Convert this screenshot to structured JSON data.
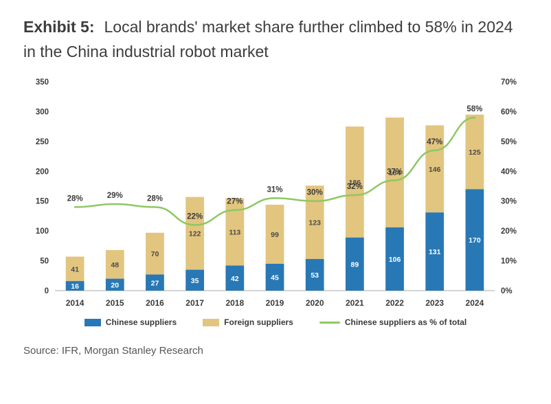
{
  "header": {
    "exhibit_label": "Exhibit 5:",
    "title_rest": "Local brands' market share further climbed to 58% in 2024 in the China industrial robot market"
  },
  "footer": {
    "source": "Source: IFR, Morgan Stanley Research"
  },
  "chart_data": {
    "type": "bar",
    "subtype": "stacked-bar-with-line",
    "categories": [
      "2014",
      "2015",
      "2016",
      "2017",
      "2018",
      "2019",
      "2020",
      "2021",
      "2022",
      "2023",
      "2024"
    ],
    "series": [
      {
        "name": "Chinese suppliers",
        "color": "#2878B5",
        "label_color": "#ffffff",
        "values": [
          16,
          20,
          27,
          35,
          42,
          45,
          53,
          89,
          106,
          131,
          170
        ]
      },
      {
        "name": "Foreign suppliers",
        "color": "#E2C57F",
        "label_color": "#4a4a4a",
        "values": [
          41,
          48,
          70,
          122,
          113,
          99,
          123,
          186,
          184,
          146,
          125
        ]
      }
    ],
    "line_series": {
      "name": "Chinese suppliers as % of total",
      "color": "#8DC863",
      "unit": "%",
      "values": [
        28,
        29,
        28,
        22,
        27,
        31,
        30,
        32,
        37,
        47,
        58
      ]
    },
    "left_axis": {
      "min": 0,
      "max": 350,
      "step": 50,
      "ticks": [
        "0",
        "50",
        "100",
        "150",
        "200",
        "250",
        "300",
        "350"
      ]
    },
    "right_axis": {
      "min": 0,
      "max": 70,
      "step": 10,
      "ticks": [
        "0%",
        "10%",
        "20%",
        "30%",
        "40%",
        "50%",
        "60%",
        "70%"
      ]
    },
    "legend_position": "bottom",
    "grid": false
  }
}
